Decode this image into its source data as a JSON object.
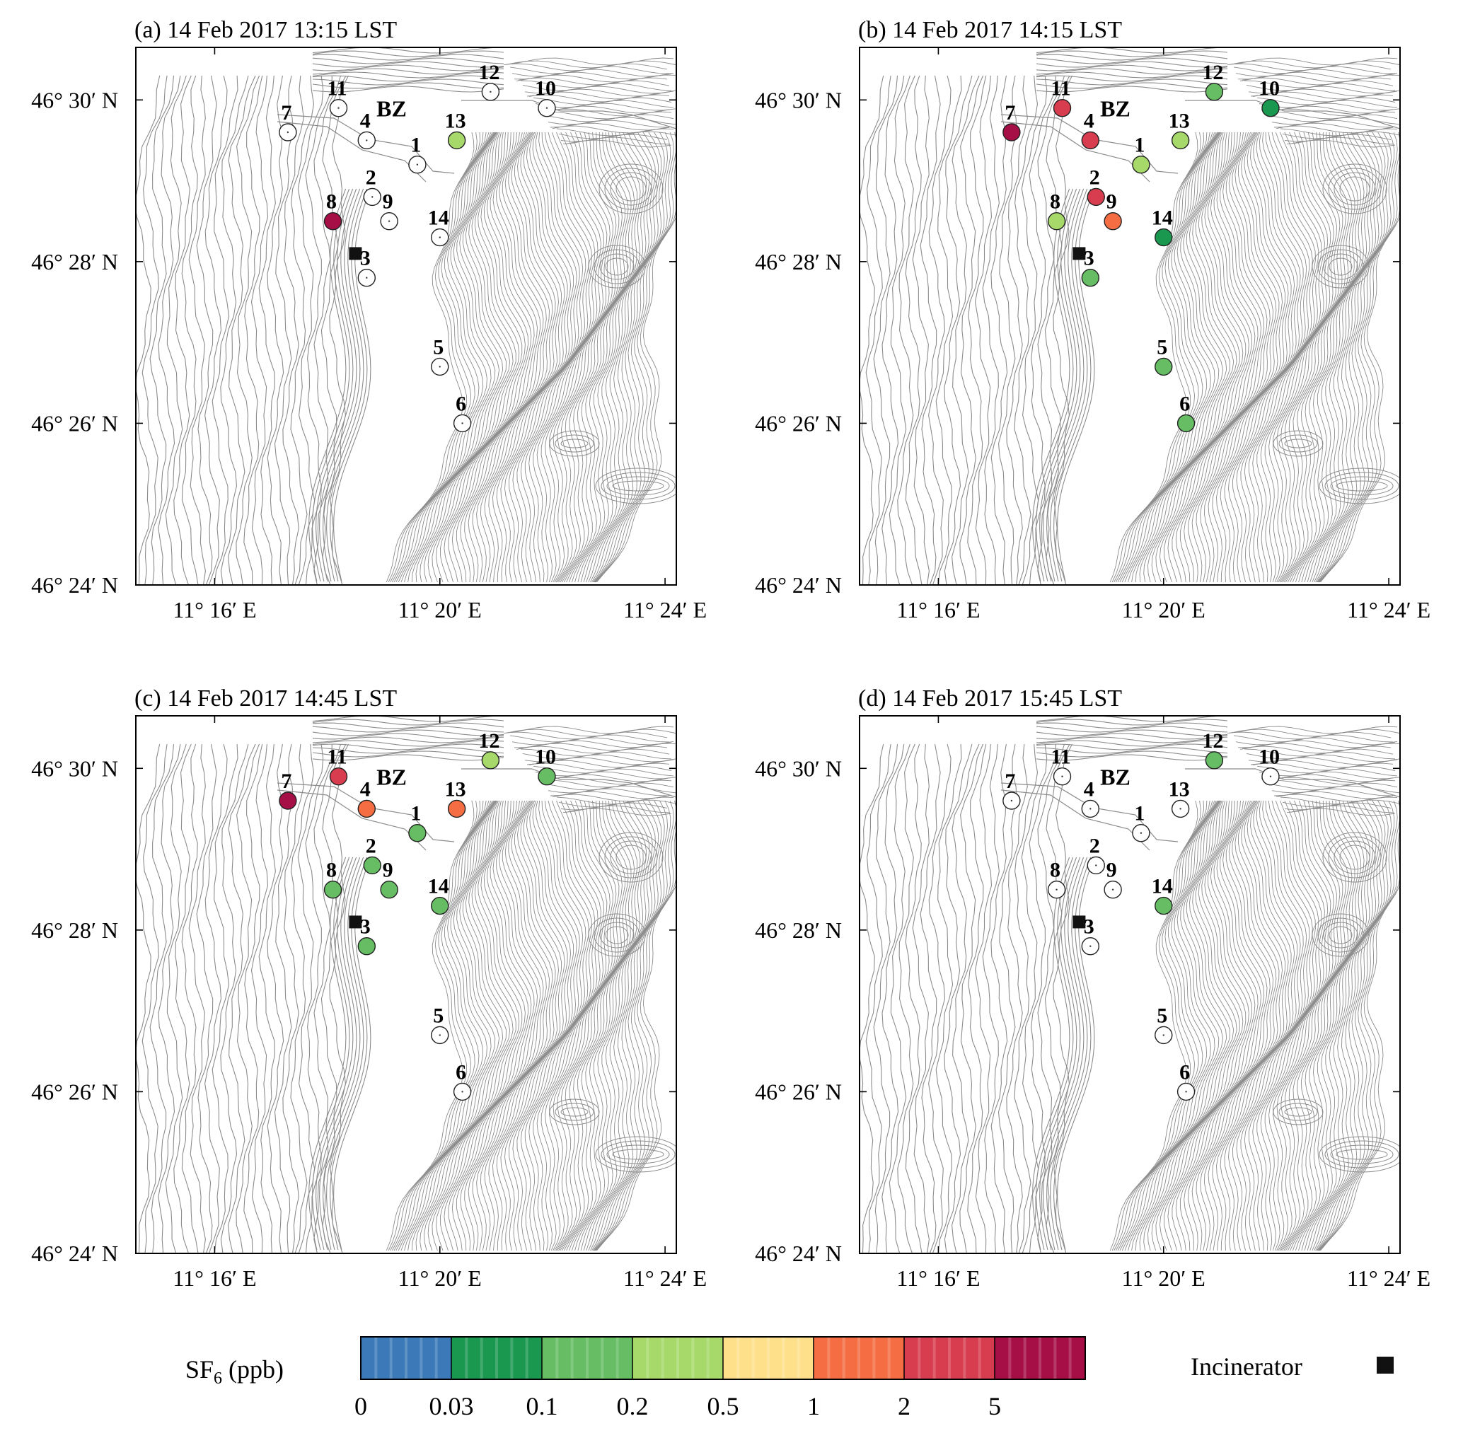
{
  "panels": [
    {
      "title": "(a) 14 Feb 2017 13:15 LST",
      "station_classes": {
        "1": null,
        "2": null,
        "3": null,
        "4": null,
        "5": null,
        "6": null,
        "7": null,
        "8": "5+",
        "9": null,
        "10": null,
        "11": null,
        "12": null,
        "13": "0.2–0.5",
        "14": null
      }
    },
    {
      "title": "(b) 14 Feb 2017 14:15 LST",
      "station_classes": {
        "1": "0.2–0.5",
        "2": "2–5",
        "3": "0.1–0.2",
        "4": "2–5",
        "5": "0.1–0.2",
        "6": "0.1–0.2",
        "7": "5+",
        "8": "0.2–0.5",
        "9": "1–2",
        "10": "0.03–0.1",
        "11": "2–5",
        "12": "0.1–0.2",
        "13": "0.2–0.5",
        "14": "0.03–0.1"
      }
    },
    {
      "title": "(c) 14 Feb 2017 14:45 LST",
      "station_classes": {
        "1": "0.1–0.2",
        "2": "0.1–0.2",
        "3": "0.1–0.2",
        "4": "1–2",
        "5": null,
        "6": null,
        "7": "5+",
        "8": "0.1–0.2",
        "9": "0.1–0.2",
        "10": "0.1–0.2",
        "11": "2–5",
        "12": "0.2–0.5",
        "13": "1–2",
        "14": "0.1–0.2"
      }
    },
    {
      "title": "(d) 14 Feb 2017 15:45 LST",
      "station_classes": {
        "1": null,
        "2": null,
        "3": null,
        "4": null,
        "5": null,
        "6": null,
        "7": null,
        "8": null,
        "9": null,
        "10": null,
        "11": null,
        "12": "0.1–0.2",
        "13": null,
        "14": "0.1–0.2"
      }
    }
  ],
  "map": {
    "lat_labels": [
      "46° 30′ N",
      "46° 28′ N",
      "46° 26′ N",
      "46° 24′ N"
    ],
    "lon_labels": [
      "11° 16′ E",
      "11° 20′ E",
      "11° 24′ E"
    ],
    "place_label": "BZ",
    "stations": [
      {
        "id": "1",
        "lon": 19.6,
        "lat": 29.2
      },
      {
        "id": "2",
        "lon": 18.8,
        "lat": 28.8
      },
      {
        "id": "3",
        "lon": 18.7,
        "lat": 27.8
      },
      {
        "id": "4",
        "lon": 18.7,
        "lat": 29.5
      },
      {
        "id": "5",
        "lon": 20.0,
        "lat": 26.7
      },
      {
        "id": "6",
        "lon": 20.4,
        "lat": 26.0
      },
      {
        "id": "7",
        "lon": 17.3,
        "lat": 29.6
      },
      {
        "id": "8",
        "lon": 18.1,
        "lat": 28.5
      },
      {
        "id": "9",
        "lon": 19.1,
        "lat": 28.5
      },
      {
        "id": "10",
        "lon": 21.9,
        "lat": 29.9
      },
      {
        "id": "11",
        "lon": 18.2,
        "lat": 29.9
      },
      {
        "id": "12",
        "lon": 20.9,
        "lat": 30.1
      },
      {
        "id": "13",
        "lon": 20.3,
        "lat": 29.5
      },
      {
        "id": "14",
        "lon": 20.0,
        "lat": 28.3
      }
    ],
    "incinerator": {
      "lon": 18.5,
      "lat": 28.1
    },
    "place_bz": {
      "lon": 19.1,
      "lat": 29.9
    }
  },
  "legend": {
    "colorbar_label": "SF6 (ppb)",
    "tick_labels": [
      "0",
      "0.03",
      "0.1",
      "0.2",
      "0.5",
      "1",
      "2",
      "5"
    ],
    "classes": [
      {
        "range": "0–0.03",
        "color": "#3b79b8"
      },
      {
        "range": "0.03–0.1",
        "color": "#1a9850"
      },
      {
        "range": "0.1–0.2",
        "color": "#66bd63"
      },
      {
        "range": "0.2–0.5",
        "color": "#a6d96a"
      },
      {
        "range": "0.5–1",
        "color": "#fee08b"
      },
      {
        "range": "1–2",
        "color": "#f46d43"
      },
      {
        "range": "2–5",
        "color": "#d73d4e"
      },
      {
        "range": "5+",
        "color": "#a50f45"
      }
    ],
    "incinerator_label": "Incinerator"
  }
}
